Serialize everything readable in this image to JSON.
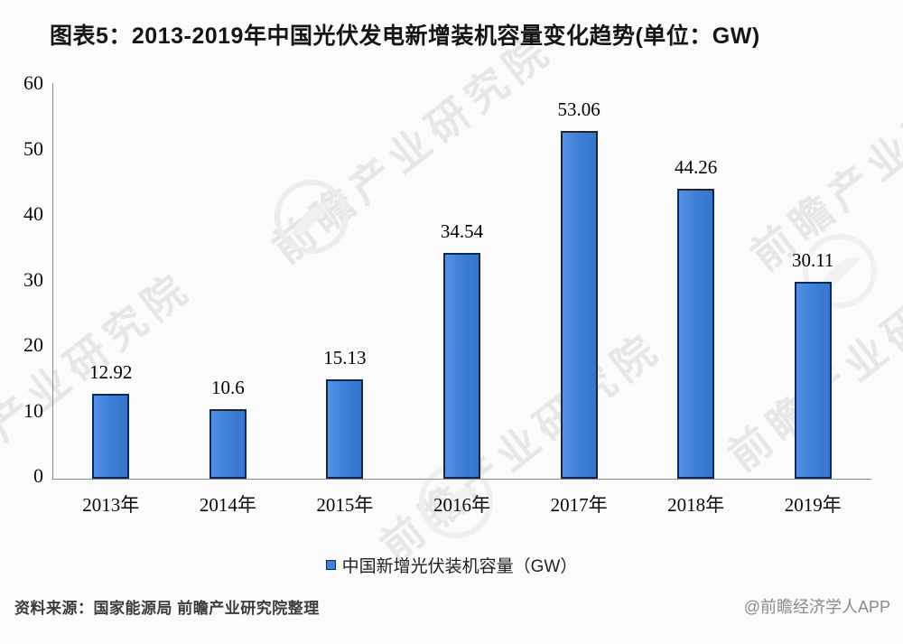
{
  "title": "图表5：2013-2019年中国光伏发电新增装机容量变化趋势(单位：GW)",
  "chart_data": {
    "type": "bar",
    "categories": [
      "2013年",
      "2014年",
      "2015年",
      "2016年",
      "2017年",
      "2018年",
      "2019年"
    ],
    "values": [
      12.92,
      10.6,
      15.13,
      34.54,
      53.06,
      44.26,
      30.11
    ],
    "value_labels": [
      "12.92",
      "10.6",
      "15.13",
      "34.54",
      "53.06",
      "44.26",
      "30.11"
    ],
    "title": "图表5：2013-2019年中国光伏发电新增装机容量变化趋势(单位：GW)",
    "xlabel": "",
    "ylabel": "",
    "ylim": [
      0,
      60
    ],
    "yticks": [
      0,
      10,
      20,
      30,
      40,
      50,
      60
    ],
    "grid": false,
    "legend_label": "中国新增光伏装机容量（GW）",
    "legend_position": "bottom",
    "bar_color": "#3e82e0",
    "bar_border_color": "#0f2a52"
  },
  "footer": {
    "source": "资料来源：国家能源局 前瞻产业研究院整理",
    "credit": "@前瞻经济学人APP"
  },
  "watermark": {
    "text": "前瞻产业研究院",
    "color": "#e7e7e7"
  }
}
